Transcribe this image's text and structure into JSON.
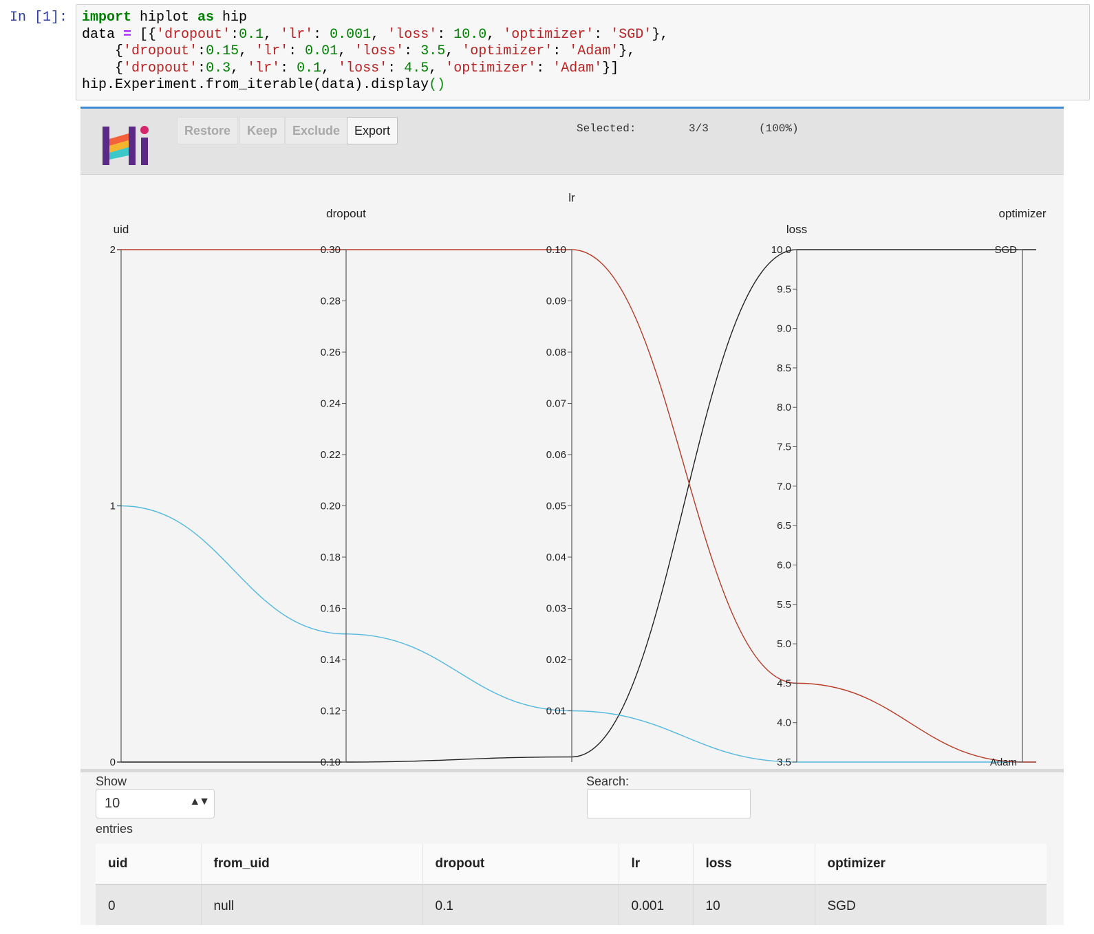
{
  "cell": {
    "prompt": "In [1]:",
    "code_lines": [
      "import hiplot as hip",
      "data = [{'dropout':0.1, 'lr': 0.001, 'loss': 10.0, 'optimizer': 'SGD'},",
      "    {'dropout':0.15, 'lr': 0.01, 'loss': 3.5, 'optimizer': 'Adam'},",
      "    {'dropout':0.3, 'lr': 0.1, 'loss': 4.5, 'optimizer': 'Adam'}]",
      "hip.Experiment.from_iterable(data).display()"
    ]
  },
  "toolbar": {
    "restore_label": "Restore",
    "keep_label": "Keep",
    "exclude_label": "Exclude",
    "export_label": "Export",
    "selected_label": "Selected:",
    "selected_count": "3/3",
    "selected_pct": "(100%)"
  },
  "colors": {
    "accent": "#3d8ad9",
    "line_red": "#b83a26",
    "line_blue": "#55b8dd",
    "line_black": "#222222",
    "logo_purple": "#5b2a86"
  },
  "chart_data": {
    "type": "parallel_coordinates",
    "axes": [
      {
        "name": "uid",
        "ticks": [
          "0",
          "1",
          "2"
        ]
      },
      {
        "name": "dropout",
        "ticks": [
          "0.10",
          "0.12",
          "0.14",
          "0.16",
          "0.18",
          "0.20",
          "0.22",
          "0.24",
          "0.26",
          "0.28",
          "0.30"
        ]
      },
      {
        "name": "lr",
        "ticks": [
          "0.01",
          "0.02",
          "0.03",
          "0.04",
          "0.05",
          "0.06",
          "0.07",
          "0.08",
          "0.09",
          "0.10"
        ]
      },
      {
        "name": "loss",
        "ticks": [
          "3.5",
          "4.0",
          "4.5",
          "5.0",
          "5.5",
          "6.0",
          "6.5",
          "7.0",
          "7.5",
          "8.0",
          "8.5",
          "9.0",
          "9.5",
          "10.0"
        ]
      },
      {
        "name": "optimizer",
        "ticks": [
          "Adam",
          "SGD"
        ]
      }
    ],
    "rows": [
      {
        "uid": 0,
        "dropout": 0.1,
        "lr": 0.001,
        "loss": 10.0,
        "optimizer": "SGD",
        "color": "#222222"
      },
      {
        "uid": 1,
        "dropout": 0.15,
        "lr": 0.01,
        "loss": 3.5,
        "optimizer": "Adam",
        "color": "#55b8dd"
      },
      {
        "uid": 2,
        "dropout": 0.3,
        "lr": 0.1,
        "loss": 4.5,
        "optimizer": "Adam",
        "color": "#b83a26"
      }
    ]
  },
  "table_controls": {
    "show_label": "Show",
    "entries_value": "10",
    "entries_label": "entries",
    "search_label": "Search:"
  },
  "table": {
    "headers": [
      "uid",
      "from_uid",
      "dropout",
      "lr",
      "loss",
      "optimizer"
    ],
    "rows": [
      [
        "0",
        "null",
        "0.1",
        "0.001",
        "10",
        "SGD"
      ]
    ]
  }
}
